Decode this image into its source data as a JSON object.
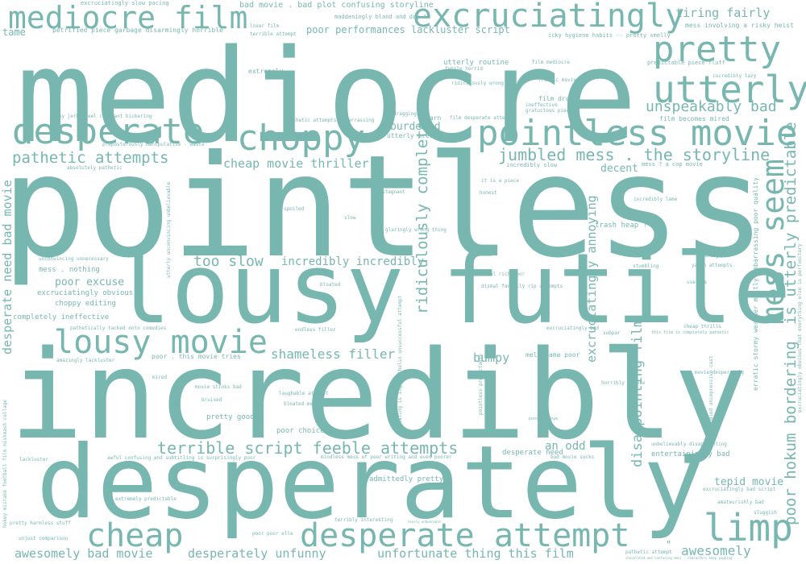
{
  "style": {
    "background": "#ffffff",
    "text_color": "#77b7b0"
  },
  "words": {
    "mediocre": "mediocre",
    "pointless": "pointless",
    "incredibly": "incredibly",
    "desperately": "desperately",
    "lousy": "lousy",
    "futile": "futile",
    "mediocre_film": "mediocre film",
    "excruciatingly": "excruciatingly",
    "pretty": "pretty",
    "utterly": "utterly",
    "desperate": "desperate",
    "choppy": "choppy",
    "pointless_movie": "pointless movie",
    "lousy_movie": "lousy movie",
    "cheap": "cheap",
    "desperate_attempt": "desperate attempt",
    "limp": "limp",
    "mess_seem": "mess seem",
    "is_utterly_predictable": "is utterly predictable",
    "poor_hokum_bordering": "poor hokum bordering",
    "ridiculously_complete": "ridiculously complete",
    "terrible_script_feeble_attempts": "terrible script feeble attempts",
    "jumbled_mess": "jumbled mess . the storyline",
    "unspeakably_bad": "unspeakably bad",
    "tiring_fairly": "tiring fairly",
    "pathetic_attempts": "pathetic attempts",
    "cheap_movie_thriller": "cheap movie thriller",
    "too_slow": "too slow",
    "incredibly_incredibly": "incredibly incredibly",
    "shameless_filler": "shameless filler",
    "awesomely_bad_movie": "awesomely bad movie",
    "desperately_unfunny": "desperately unfunny",
    "unfortunate_thing": "unfortunate thing this film",
    "awesomely": "awesomely",
    "bumpy": "bumpy",
    "an_odd": "an odd",
    "tepid_movie": "tepid movie",
    "disappointing_film": "disappointing film",
    "excruciatingly_annoying": "excruciatingly annoying",
    "desperate_need_bad_movie": "desperate need bad movie",
    "poor_excuse": "poor excuse",
    "poor_performances": "poor performances lackluster script",
    "burdened": "burdened",
    "decent": "decent",
    "bad_movie_bad_plot": "bad movie . bad plot confusing storyline",
    "tame": "tame",
    "petrified": "petrified piece garbage disarmingly horrible",
    "excruciatingly_slow_pacing": "excruciatingly slow pacing",
    "maddeningly": "maddeningly bland and dry ?",
    "loser_film": "loser film",
    "terrible_attempt": "terrible attempt",
    "icky": "icky hygiene habits -- pretty smelly",
    "mess_involving": "mess involving a risky heist",
    "predictable_piece": "predictable piece fluff",
    "incredibly_lazy": "incredibly lazy",
    "utterly_routine": "utterly routine",
    "futile_horrid": "futile horrid",
    "film_mediocre": "film mediocre",
    "ridiculously_wrong": "ridiculously wrong",
    "frantic_movie": "frantic movie",
    "extremely": "extremely",
    "film_drags": "film drags",
    "ineffective": "ineffective",
    "gratuitous_piece": "gratuitous piece",
    "herky_jerky": "herky jerky feel constant bickering",
    "pathetic_attempts_embarrassing": "pathetic attempts embarrassing",
    "dragging": "dragging",
    "darn": "darn",
    "film_desperate_attempt": "film desperate attempt",
    "film_becomes_mired": "film becomes mired",
    "utterly_predictable": "utterly predictable",
    "preposterously": "preposterously manipulative - waste",
    "absolutely_pathetic": "absolutely pathetic",
    "incredibly_slow": "incredibly slow",
    "mess_cop_movie": "mess ? a cop movie",
    "it_is_a_piece": "it is a piece",
    "honest": "honest",
    "stagnant": "stagnant",
    "spoiled": "spoiled",
    "slow": "slow",
    "incredibly_lame": "incredibly lame",
    "trash_heap": "trash heap ?",
    "glaringly_wrong_thing": "glaringly wrong thing",
    "unconvincing_unnecessary": "unconvincing unnecessary",
    "mess_nothing": "mess . nothing",
    "excruciatingly_obvious": "excruciatingly obvious",
    "choppy_editing": "choppy editing",
    "completely_ineffective": "completely ineffective",
    "pathetically_tacked": "pathetically tacked onto comedies",
    "amazingly_lackluster": "amazingly lackluster",
    "endless_filler": "endless filler",
    "bloated": "bloated",
    "banal_rich_poor": "banal rich poor",
    "dismal_farrelly": "dismal farrelly rip attempts",
    "meaningless": "meaningless",
    "stumbling": "stumbling",
    "yakin_attempts": "yakin attempts",
    "useless": "useless",
    "excruciatingly_bad": "excruciatingly bad",
    "subpar": "subpar",
    "cheap_thrills": "cheap thrills",
    "completely_pathetic": "this film is completely pathetic",
    "poor_this_movie_tries": "poor . this movie tries",
    "melodrama_poor": "melodrama poor",
    "mired": "mired",
    "movie_desperately": "movie desperately",
    "movie_stinks_bad": "movie stinks bad",
    "bruised": "bruised",
    "horribly_simple": "horribly simple",
    "laughable_attempt": "laughable attempt",
    "bloated_mess": "bloated mess",
    "pretty_good": "pretty good",
    "poor_choices": "poor choices",
    "poor_goodbye": "poor goodbye",
    "lackluster": "lackluster",
    "awful_confusing": "awful confusing and subtitling is surprisingly poor",
    "mindless_mess": "mindless mess of poor writing and even poorer",
    "desperate_need": "desperate need",
    "bad_movie_sucks": "bad movie sucks",
    "unbelievably_disappointing": "unbelievably disappointing",
    "entertainingly_bad": "entertainingly bad",
    "admittedly_pretty": "admittedly pretty",
    "extremely_predictable": "extremely predictable",
    "excruciatingly_bad_script": "excruciatingly bad script",
    "amateurishly_bad": "amateurishly bad",
    "sluggish": "sluggish",
    "pretty_harmless_stuff": "pretty harmless stuff",
    "unjust_comparison": "unjust comparison",
    "poor_poor_elle": "poor poor elle",
    "terribly_interesting": "terribly interesting",
    "nearly_unbearable": "nearly unbearable",
    "pathetic_attempt": "pathetic attempt",
    "convoluted": "convoluted and confusing mess . characters keep popping",
    "utterly_unconvincing": "utterly unconvincing unbelievable",
    "saddled_unimpressive_cast": "saddled unimpressive cast",
    "erratic_stormy_weather": "erratic stormy weather mostly embarrassing poor quality",
    "excruciatingly_obvious_that": "excruciatingly obvious that everything else is perfunctory",
    "pointless_predictable": "pointless predictable",
    "irritating_ingrid": "irritating is ingrid thulin unsuccessful attempt",
    "football_film": "hokey mistake football film mishmash collage",
    "tiny_quote": "\""
  }
}
